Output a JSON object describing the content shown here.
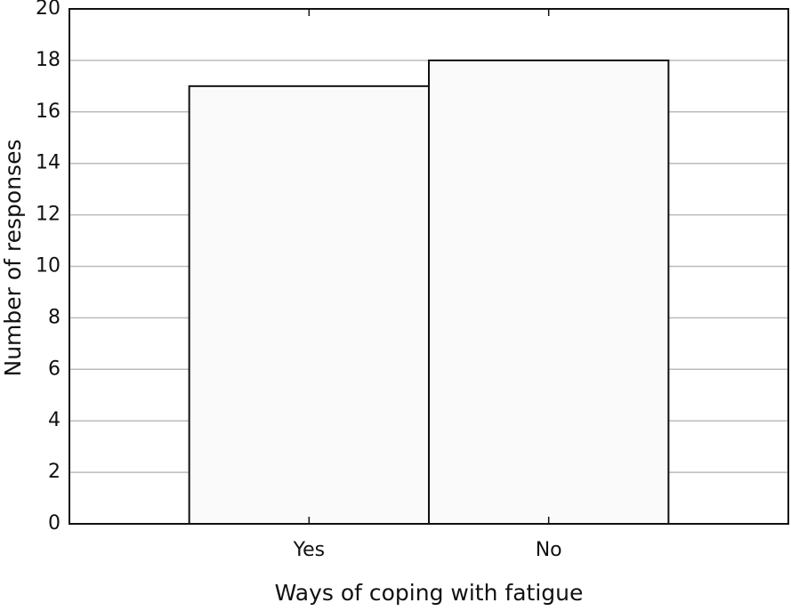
{
  "chart_data": {
    "type": "bar",
    "categories": [
      "Yes",
      "No"
    ],
    "values": [
      17,
      18
    ],
    "color": "#fafafa",
    "xlabel": "Ways of coping with fatigue",
    "ylabel": "Number of responses",
    "ylim": [
      0,
      20
    ],
    "yticks": [
      0,
      2,
      4,
      6,
      8,
      10,
      12,
      14,
      16,
      18,
      20
    ],
    "grid": true
  }
}
